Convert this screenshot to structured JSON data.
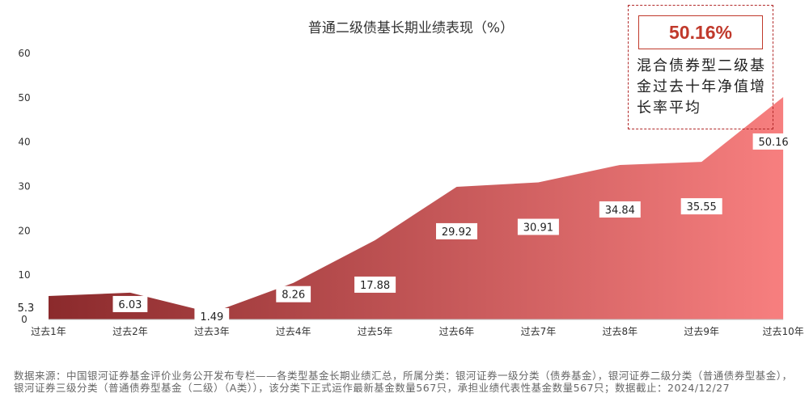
{
  "chart_data": {
    "type": "area",
    "title": "普通二级债基长期业绩表现（%）",
    "categories": [
      "过去1年",
      "过去2年",
      "过去3年",
      "过去4年",
      "过去5年",
      "过去6年",
      "过去7年",
      "过去8年",
      "过去9年",
      "过去10年"
    ],
    "values": [
      5.3,
      6.03,
      1.49,
      8.26,
      17.88,
      29.92,
      30.91,
      34.84,
      35.55,
      50.16
    ],
    "data_labels": [
      "5.3",
      "6.03",
      "1.49",
      "8.26",
      "17.88",
      "29.92",
      "30.91",
      "34.84",
      "35.55",
      "50.16"
    ],
    "yticks": [
      "0",
      "10",
      "20",
      "30",
      "40",
      "50",
      "60"
    ],
    "ylim": [
      0,
      60
    ],
    "grid": false,
    "colors": {
      "dark": "#8b2a2c",
      "light": "#f77f7f"
    }
  },
  "callout": {
    "value": "50.16%",
    "text": "混合债券型二级基金过去十年净值增长率平均"
  },
  "footnote": "数据来源：中国银河证券基金评价业务公开发布专栏——各类型基金长期业绩汇总，所属分类：银河证券一级分类（债券基金），银河证券二级分类（普通债券型基金），银河证券三级分类（普通债券型基金（二级）（A类）），该分类下正式运作最新基金数量567只，承担业绩代表性基金数量567只；数据截止：2024/12/27"
}
